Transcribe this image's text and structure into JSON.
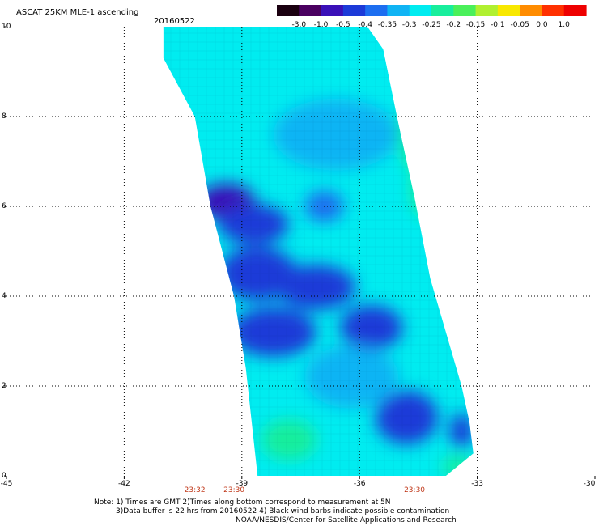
{
  "header": {
    "title": "ASCAT 25KM MLE-1 ascending",
    "date": "20160522"
  },
  "colorbar": {
    "tick_labels": [
      "-3.0",
      "-1.0",
      "-0.5",
      "-0.4",
      "-0.35",
      "-0.3",
      "-0.25",
      "-0.2",
      "-0.15",
      "-0.1",
      "-0.05",
      "0.0",
      "1.0"
    ],
    "colors": [
      "#1a0010",
      "#4a0060",
      "#3a10b8",
      "#1c3ad8",
      "#1d6ef0",
      "#10b4f4",
      "#00ecf0",
      "#18ee9c",
      "#4af05a",
      "#b0f030",
      "#f8e800",
      "#ff8c00",
      "#ff3000",
      "#ee0000"
    ]
  },
  "notes": {
    "line1": "Note: 1) Times are GMT 2)Times along bottom correspond to measurement at 5N",
    "line2": "3)Data buffer is 22 hrs from 20160522 4) Black wind barbs indicate possible contamination",
    "line3": "NOAA/NESDIS/Center for Satellite Applications and Research"
  },
  "chart_data": {
    "type": "heatmap",
    "title": "ASCAT 25KM MLE-1 ascending",
    "subtitle": "20160522",
    "x_ticks": [
      -45,
      -42,
      -39,
      -36,
      -33,
      -30
    ],
    "x_tick_labels": [
      "-45",
      "-42",
      "-39",
      "-36",
      "-33",
      "-30"
    ],
    "y_ticks": [
      0,
      2,
      4,
      6,
      8,
      10
    ],
    "y_tick_labels": [
      "0",
      "2",
      "4",
      "6",
      "8",
      "10"
    ],
    "xlim": [
      -45,
      -30
    ],
    "ylim": [
      0,
      10
    ],
    "grid": true,
    "time_labels": [
      {
        "x": -40.2,
        "label": "23:32"
      },
      {
        "x": -39.2,
        "label": "23:30"
      },
      {
        "x": -34.6,
        "label": "23:30"
      }
    ],
    "swath": {
      "left_edge": [
        [
          -41.0,
          10
        ],
        [
          -41.0,
          9.3
        ],
        [
          -40.2,
          8
        ],
        [
          -39.8,
          6
        ],
        [
          -39.2,
          4
        ],
        [
          -38.9,
          2.4
        ],
        [
          -38.6,
          0
        ]
      ],
      "right_edge": [
        [
          -33.8,
          0
        ],
        [
          -33.1,
          0.5
        ],
        [
          -33.2,
          1.2
        ],
        [
          -33.4,
          2
        ],
        [
          -33.8,
          3.2
        ],
        [
          -34.2,
          4.4
        ],
        [
          -34.6,
          6.2
        ],
        [
          -35.0,
          7.8
        ],
        [
          -35.4,
          9.5
        ],
        [
          -35.8,
          10
        ]
      ]
    },
    "colorbar": {
      "levels": [
        -3.0,
        -1.0,
        -0.5,
        -0.4,
        -0.35,
        -0.3,
        -0.25,
        -0.2,
        -0.15,
        -0.1,
        -0.05,
        0.0,
        1.0
      ]
    },
    "value_regions": [
      {
        "x": -37.8,
        "y": 9.4,
        "v": -0.21,
        "w": 3.0,
        "h": 1.8
      },
      {
        "x": -35.1,
        "y": 9.3,
        "v": -0.22,
        "w": 1.2,
        "h": 1.5
      },
      {
        "x": -34.4,
        "y": 7.6,
        "v": -0.16,
        "w": 1.2,
        "h": 1.8
      },
      {
        "x": -34.2,
        "y": 6.4,
        "v": -0.17,
        "w": 1.0,
        "h": 1.4
      },
      {
        "x": -33.9,
        "y": 5.1,
        "v": -0.21,
        "w": 0.9,
        "h": 1.2
      },
      {
        "x": -36.6,
        "y": 7.6,
        "v": -0.3,
        "w": 3.2,
        "h": 1.6
      },
      {
        "x": -39.4,
        "y": 6.1,
        "v": -0.43,
        "w": 1.5,
        "h": 0.8
      },
      {
        "x": -38.7,
        "y": 5.6,
        "v": -0.38,
        "w": 1.8,
        "h": 0.9
      },
      {
        "x": -38.6,
        "y": 4.5,
        "v": -0.37,
        "w": 2.0,
        "h": 1.2
      },
      {
        "x": -37.1,
        "y": 4.2,
        "v": -0.4,
        "w": 2.0,
        "h": 1.0
      },
      {
        "x": -38.2,
        "y": 3.2,
        "v": -0.38,
        "w": 2.2,
        "h": 1.1
      },
      {
        "x": -35.7,
        "y": 3.3,
        "v": -0.37,
        "w": 1.6,
        "h": 1.0
      },
      {
        "x": -34.8,
        "y": 1.3,
        "v": -0.4,
        "w": 1.6,
        "h": 1.2
      },
      {
        "x": -33.4,
        "y": 1.0,
        "v": -0.37,
        "w": 0.6,
        "h": 0.8
      },
      {
        "x": -37.8,
        "y": 0.8,
        "v": -0.17,
        "w": 1.4,
        "h": 0.9
      },
      {
        "x": -33.5,
        "y": 0.2,
        "v": -0.19,
        "w": 0.8,
        "h": 0.5
      },
      {
        "x": -36.9,
        "y": 6.0,
        "v": -0.34,
        "w": 1.0,
        "h": 0.7
      },
      {
        "x": -36.2,
        "y": 2.2,
        "v": -0.29,
        "w": 2.4,
        "h": 1.4
      }
    ]
  }
}
